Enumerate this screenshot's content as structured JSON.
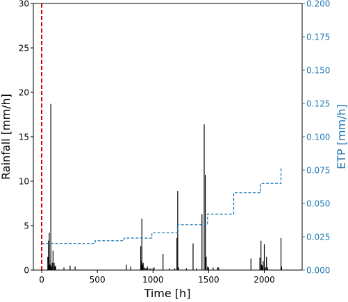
{
  "chart_data": {
    "type": "bar+line",
    "xlabel": "Time [h]",
    "ylabel_left": "Rainfall [mm/h]",
    "ylabel_right": "ETP [mm/h]",
    "xlim": [
      -75,
      2340
    ],
    "ylim_left": [
      0,
      30
    ],
    "ylim_right": [
      0,
      0.2
    ],
    "x_ticks": [
      0,
      500,
      1000,
      1500,
      2000
    ],
    "y_left_ticks": [
      0,
      5,
      10,
      15,
      20,
      25,
      30
    ],
    "y_right_ticks": [
      "0.000",
      "0.025",
      "0.050",
      "0.075",
      "0.100",
      "0.125",
      "0.150",
      "0.175",
      "0.200"
    ],
    "grid": false,
    "colors": {
      "rainfall": "#000000",
      "etp": "#1f77b4",
      "marker_line": "#e00000",
      "right_axis": "#1f77b4"
    },
    "marker_line_x": 0,
    "rainfall": {
      "x": [
        55,
        62,
        68,
        75,
        82,
        88,
        95,
        102,
        112,
        118,
        125,
        200,
        255,
        300,
        760,
        800,
        890,
        895,
        900,
        905,
        912,
        920,
        930,
        940,
        950,
        965,
        980,
        1000,
        1010,
        1090,
        1150,
        1195,
        1215,
        1222,
        1230,
        1300,
        1360,
        1390,
        1440,
        1460,
        1470,
        1478,
        1490,
        1500,
        1540,
        1580,
        1590,
        1880,
        1960,
        1970,
        1975,
        1982,
        1990,
        2000,
        2010,
        2020,
        2030,
        2150,
        2155
      ],
      "values": [
        1.5,
        3.3,
        4.2,
        0.6,
        18.7,
        0.4,
        0.8,
        2.2,
        0.8,
        0.4,
        0.5,
        0.3,
        0.5,
        0.4,
        0.6,
        0.4,
        2.7,
        1.0,
        5.8,
        0.6,
        0.8,
        0.3,
        0.2,
        0.2,
        0.4,
        0.2,
        0.2,
        0.2,
        0.3,
        1.8,
        0.2,
        0.2,
        3.6,
        8.9,
        0.3,
        0.2,
        3.0,
        0.2,
        6.3,
        16.4,
        10.7,
        1.5,
        0.4,
        0.3,
        0.3,
        0.3,
        0.3,
        1.3,
        1.4,
        3.3,
        0.6,
        0.5,
        1.0,
        2.9,
        0.3,
        1.5,
        0.3,
        3.6,
        0.4
      ]
    },
    "etp": {
      "steps": [
        {
          "x_start": 0,
          "x_end": 480,
          "value": 0.02
        },
        {
          "x_start": 480,
          "x_end": 740,
          "value": 0.022
        },
        {
          "x_start": 740,
          "x_end": 990,
          "value": 0.024
        },
        {
          "x_start": 990,
          "x_end": 1220,
          "value": 0.028
        },
        {
          "x_start": 1220,
          "x_end": 1490,
          "value": 0.034
        },
        {
          "x_start": 1490,
          "x_end": 1725,
          "value": 0.042
        },
        {
          "x_start": 1725,
          "x_end": 1965,
          "value": 0.058
        },
        {
          "x_start": 1965,
          "x_end": 2150,
          "value": 0.065
        },
        {
          "x_start": 2150,
          "x_end": 2165,
          "value": 0.076
        }
      ]
    }
  }
}
